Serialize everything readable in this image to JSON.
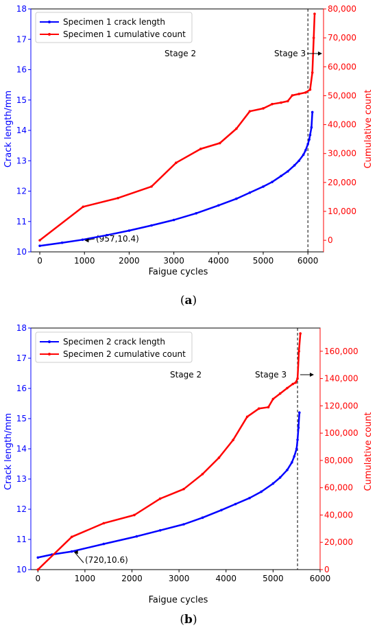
{
  "chart_data": [
    {
      "panel_label": "a",
      "type": "line",
      "xlabel": "Faigue cycles",
      "ylabel_left": "Crack length/mm",
      "ylabel_right": "Cumulative count",
      "xlim": [
        -200,
        6350
      ],
      "ylim_left": [
        10,
        18
      ],
      "ylim_right": [
        -4000,
        80000
      ],
      "x_ticks": [
        "0",
        "1000",
        "2000",
        "3000",
        "4000",
        "5000",
        "6000"
      ],
      "y_ticks_left": [
        "10",
        "11",
        "12",
        "13",
        "14",
        "15",
        "16",
        "17",
        "18"
      ],
      "y_ticks_right": [
        "0",
        "10,000",
        "20,000",
        "30,000",
        "40,000",
        "50,000",
        "60,000",
        "70,000",
        "80,000"
      ],
      "legend_position": "top-left",
      "series": [
        {
          "name": "Specimen 1 crack length",
          "axis": "left",
          "color": "#0000ff",
          "x": [
            0,
            500,
            957,
            1500,
            2000,
            2500,
            3000,
            3500,
            4000,
            4400,
            4700,
            5000,
            5200,
            5400,
            5550,
            5700,
            5800,
            5900,
            5950,
            6000,
            6030,
            6050,
            6080,
            6100
          ],
          "y": [
            10.2,
            10.3,
            10.4,
            10.55,
            10.7,
            10.87,
            11.05,
            11.27,
            11.53,
            11.75,
            11.95,
            12.15,
            12.3,
            12.5,
            12.65,
            12.85,
            13.0,
            13.2,
            13.35,
            13.55,
            13.7,
            13.85,
            14.1,
            14.6
          ]
        },
        {
          "name": "Specimen 1 cumulative count",
          "axis": "right",
          "color": "#ff0000",
          "x": [
            0,
            970,
            1750,
            2500,
            3050,
            3600,
            4030,
            4400,
            4700,
            5000,
            5200,
            5400,
            5550,
            5650,
            5800,
            5950,
            6050,
            6100,
            6130,
            6150
          ],
          "y": [
            0,
            11600,
            14600,
            18600,
            26800,
            31600,
            33600,
            38600,
            44600,
            45600,
            47100,
            47600,
            48100,
            50100,
            50600,
            51100,
            52100,
            58000,
            70000,
            78300
          ]
        }
      ],
      "annotations": [
        {
          "text": "(957,10.4)",
          "x": 957,
          "y": 10.4
        },
        {
          "text": "Stage 2"
        },
        {
          "text": "Stage 3"
        }
      ],
      "vline_x": 6000
    },
    {
      "panel_label": "b",
      "type": "line",
      "xlabel": "Faigue cycles",
      "ylabel_left": "Crack length/mm",
      "ylabel_right": "Cumulative count",
      "xlim": [
        -150,
        6000
      ],
      "ylim_left": [
        10,
        18
      ],
      "ylim_right": [
        0,
        177000
      ],
      "x_ticks": [
        "0",
        "1000",
        "2000",
        "3000",
        "4000",
        "5000",
        "6000"
      ],
      "y_ticks_left": [
        "10",
        "11",
        "12",
        "13",
        "14",
        "15",
        "16",
        "17",
        "18"
      ],
      "y_ticks_right": [
        "0",
        "20,000",
        "40,000",
        "60,000",
        "80,000",
        "100,000",
        "120,000",
        "140,000",
        "160,000"
      ],
      "legend_position": "top-left",
      "series": [
        {
          "name": "Specimen 2 crack length",
          "axis": "left",
          "color": "#0000ff",
          "x": [
            0,
            300,
            720,
            1400,
            2100,
            2600,
            3100,
            3500,
            3900,
            4200,
            4500,
            4750,
            5000,
            5150,
            5300,
            5400,
            5450,
            5500,
            5520,
            5540,
            5560
          ],
          "y": [
            10.4,
            10.5,
            10.6,
            10.85,
            11.1,
            11.3,
            11.5,
            11.72,
            11.97,
            12.17,
            12.37,
            12.58,
            12.85,
            13.05,
            13.3,
            13.55,
            13.75,
            14.0,
            14.3,
            14.7,
            15.2
          ]
        },
        {
          "name": "Specimen 2 cumulative count",
          "axis": "right",
          "color": "#ff0000",
          "x": [
            0,
            720,
            1400,
            2050,
            2600,
            3100,
            3500,
            3850,
            4150,
            4450,
            4700,
            4900,
            5000,
            5150,
            5300,
            5420,
            5480,
            5520,
            5550,
            5580
          ],
          "y": [
            0,
            24000,
            34000,
            40000,
            52000,
            59000,
            70000,
            82000,
            95000,
            112000,
            118000,
            119000,
            125000,
            129000,
            133000,
            136000,
            137000,
            140000,
            160000,
            173000
          ]
        }
      ],
      "annotations": [
        {
          "text": "(720,10.6)",
          "x": 720,
          "y": 10.6
        },
        {
          "text": "Stage 2"
        },
        {
          "text": "Stage 3"
        }
      ],
      "vline_x": 5520
    }
  ]
}
